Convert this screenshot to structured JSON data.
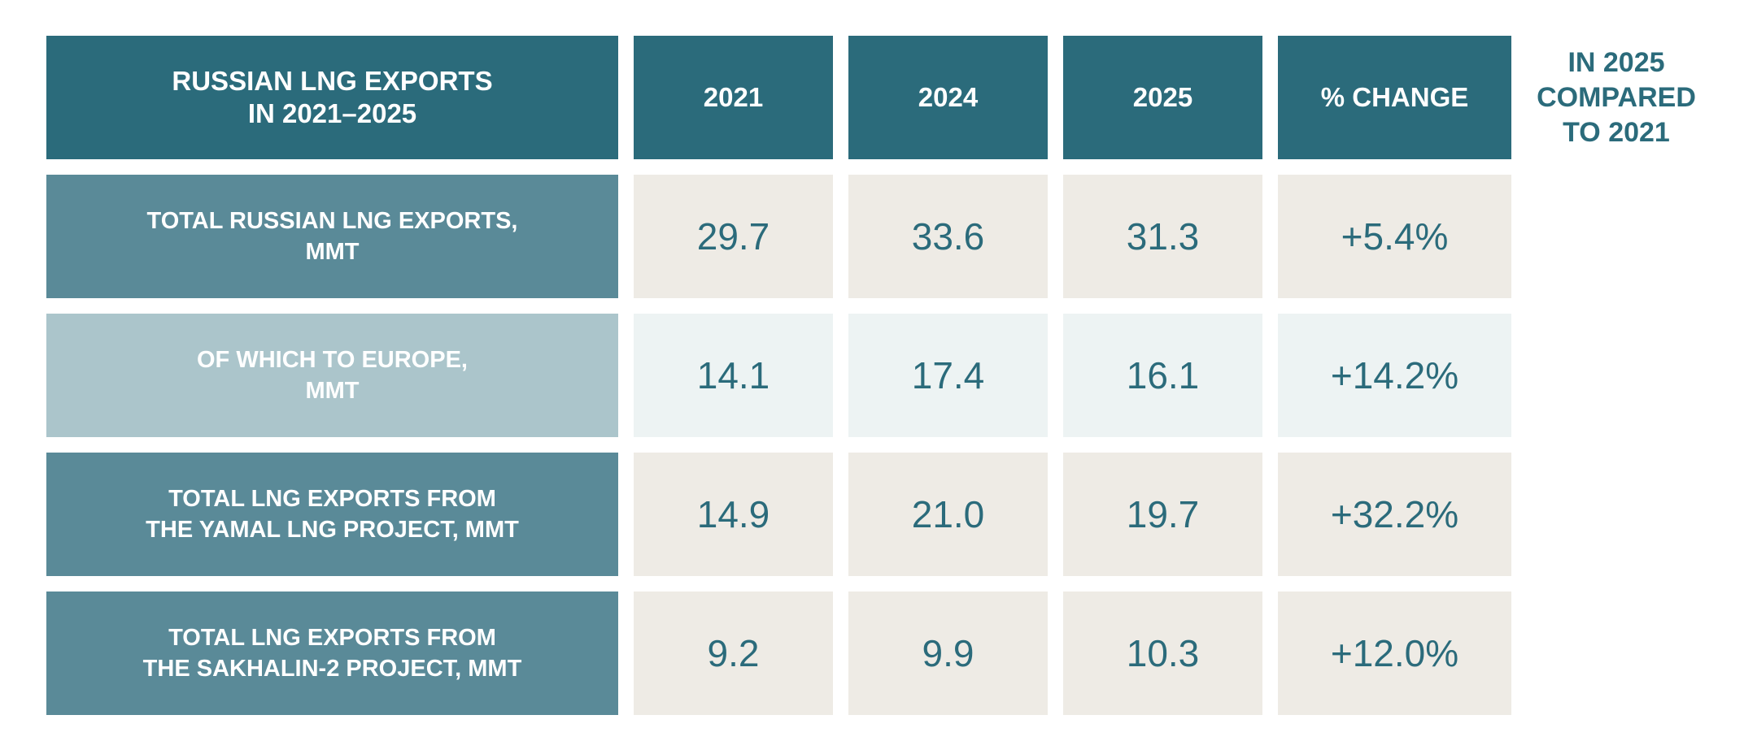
{
  "chart_data": {
    "type": "table",
    "title": "RUSSIAN LNG EXPORTS\nIN 2021–2025",
    "columns": [
      "2021",
      "2024",
      "2025",
      "% CHANGE"
    ],
    "change_note": "IN 2025\nCOMPARED\nTO 2021",
    "rows": [
      {
        "label": "TOTAL RUSSIAN LNG EXPORTS,\nMMT",
        "values": [
          "29.7",
          "33.6",
          "31.3",
          "+5.4%"
        ]
      },
      {
        "label": "OF WHICH TO EUROPE,\nMMT",
        "values": [
          "14.1",
          "17.4",
          "16.1",
          "+14.2%"
        ]
      },
      {
        "label": "TOTAL LNG EXPORTS FROM\nTHE YAMAL LNG PROJECT, MMT",
        "values": [
          "14.9",
          "21.0",
          "19.7",
          "+32.2%"
        ]
      },
      {
        "label": "TOTAL LNG EXPORTS FROM\nTHE SAKHALIN-2 PROJECT, MMT",
        "values": [
          "9.2",
          "9.9",
          "10.3",
          "+12.0%"
        ]
      }
    ]
  },
  "colors": {
    "header": "#2b6b7b",
    "row_label_dark": "#5a8a98",
    "row_label_light": "#abc5cb",
    "value_beige": "#eeebe5",
    "value_pale": "#edf3f3",
    "value_text": "#2b6b7b"
  }
}
